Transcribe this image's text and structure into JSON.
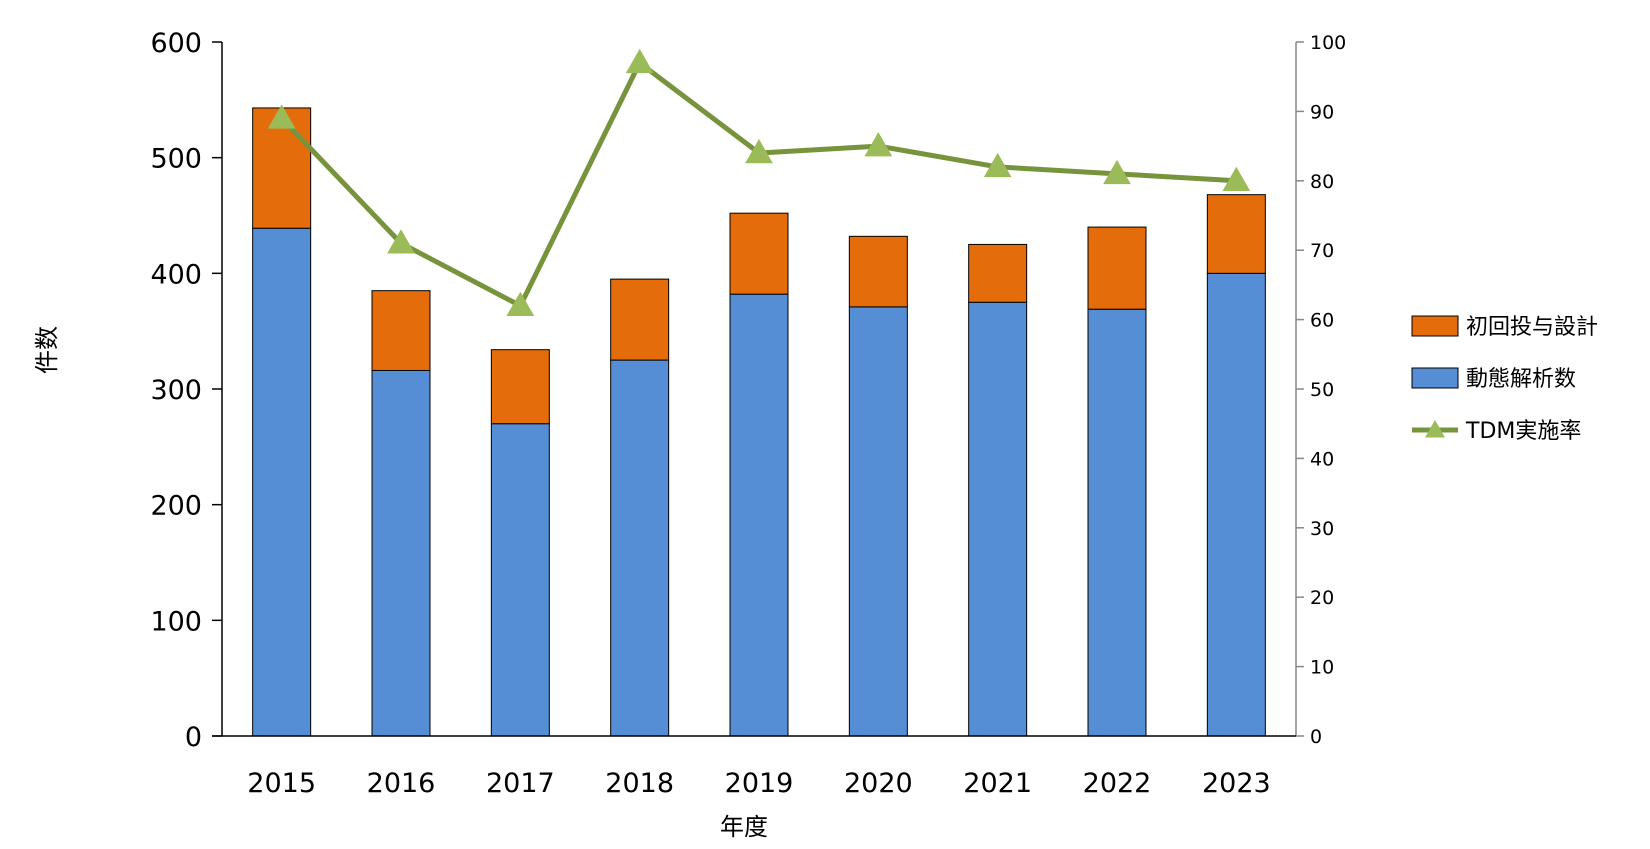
{
  "chart_data": {
    "type": "bar",
    "stacked": true,
    "categories": [
      "2015",
      "2016",
      "2017",
      "2018",
      "2019",
      "2020",
      "2021",
      "2022",
      "2023"
    ],
    "series": [
      {
        "name": "動態解析数",
        "type": "bar",
        "axis": "left",
        "color": "#558ED5",
        "values": [
          439,
          316,
          270,
          325,
          382,
          371,
          375,
          369,
          400
        ]
      },
      {
        "name": "初回投与設計",
        "type": "bar",
        "axis": "left",
        "color": "#E46C0A",
        "values": [
          104,
          69,
          64,
          70,
          70,
          61,
          50,
          71,
          68
        ]
      },
      {
        "name": "TDM実施率",
        "type": "line",
        "marker": "triangle",
        "axis": "right",
        "color": "#77933C",
        "marker_color": "#9BBB59",
        "values": [
          89,
          71,
          62,
          97,
          84,
          85,
          82,
          81,
          80
        ]
      }
    ],
    "ylabel": "件数",
    "xlabel": "年度",
    "ylim": [
      0,
      600
    ],
    "y_ticks": [
      "0",
      "100",
      "200",
      "300",
      "400",
      "500",
      "600"
    ],
    "y2lim": [
      0,
      100
    ],
    "y2_ticks": [
      "0",
      "10",
      "20",
      "30",
      "40",
      "50",
      "60",
      "70",
      "80",
      "90",
      "100"
    ],
    "legend_position": "right",
    "legend": [
      "初回投与設計",
      "動態解析数",
      "TDM実施率"
    ],
    "grid": false
  }
}
